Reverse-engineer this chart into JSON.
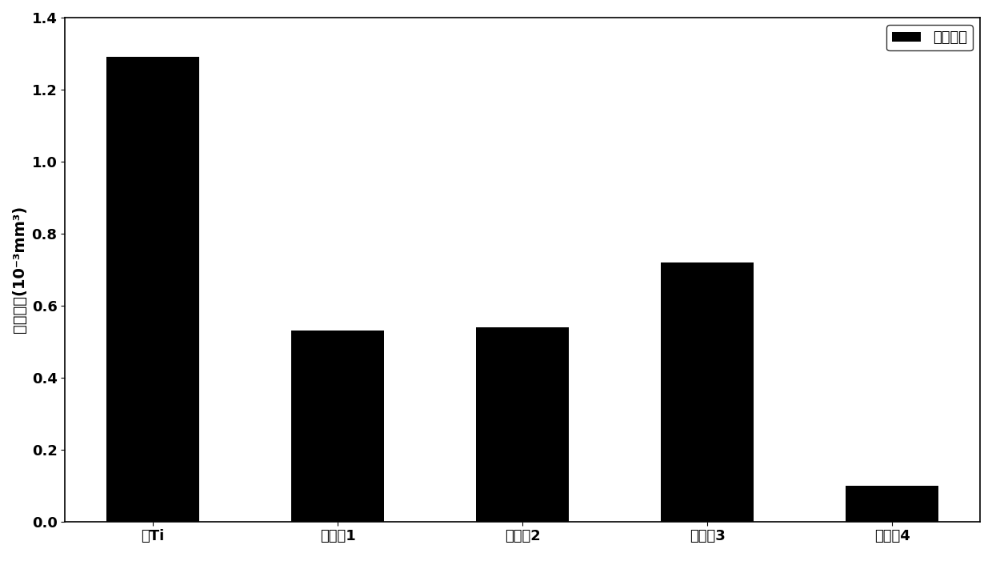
{
  "categories": [
    "纯Ti",
    "实施例1",
    "实施例2",
    "实施例3",
    "实施例4"
  ],
  "values": [
    1.29,
    0.53,
    0.54,
    0.72,
    0.1
  ],
  "bar_color": "#000000",
  "ylabel": "磨损体积(10⁻³mm³)",
  "ylim": [
    0,
    1.4
  ],
  "yticks": [
    0,
    0.2,
    0.4,
    0.6,
    0.8,
    1.0,
    1.2,
    1.4
  ],
  "legend_label": "磨损体积",
  "background_color": "#ffffff",
  "plot_bg_color": "#ffffff",
  "title_fontsize": 14,
  "label_fontsize": 14,
  "tick_fontsize": 13,
  "legend_fontsize": 13,
  "bar_width": 0.5
}
